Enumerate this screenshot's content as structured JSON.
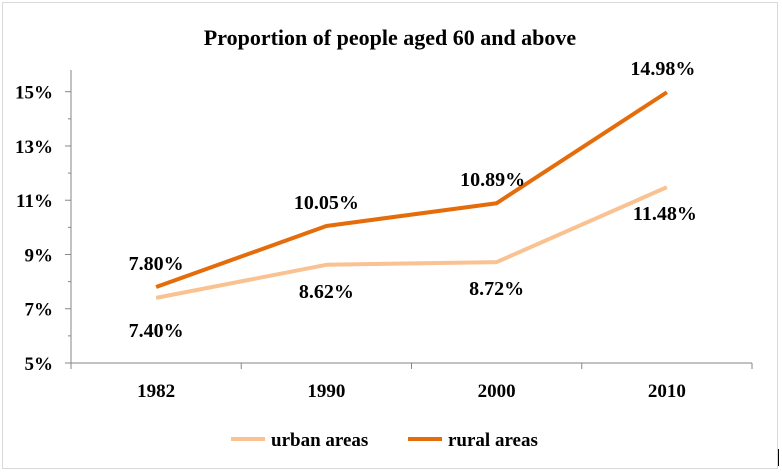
{
  "chart_data": {
    "type": "line",
    "title": "Proportion of people aged 60 and above",
    "xlabel": "",
    "ylabel": "",
    "categories": [
      "1982",
      "1990",
      "2000",
      "2010"
    ],
    "ylim": [
      5,
      15.8
    ],
    "yticks": [
      5,
      7,
      9,
      11,
      13,
      15
    ],
    "ytick_labels": [
      "5%",
      "7%",
      "9%",
      "11%",
      "13%",
      "15%"
    ],
    "grid": false,
    "legend_position": "bottom",
    "series": [
      {
        "name": "urban areas",
        "color": "#F9C290",
        "values": [
          7.4,
          8.62,
          8.72,
          11.48
        ],
        "labels": [
          "7.40%",
          "8.62%",
          "8.72%",
          "11.48%"
        ],
        "label_position": [
          "below",
          "below",
          "below",
          "below"
        ]
      },
      {
        "name": "rural areas",
        "color": "#E46C0A",
        "values": [
          7.8,
          10.05,
          10.89,
          14.98
        ],
        "labels": [
          "7.80%",
          "10.05%",
          "10.89%",
          "14.98%"
        ],
        "label_position": [
          "above",
          "above",
          "above",
          "above"
        ]
      }
    ]
  }
}
